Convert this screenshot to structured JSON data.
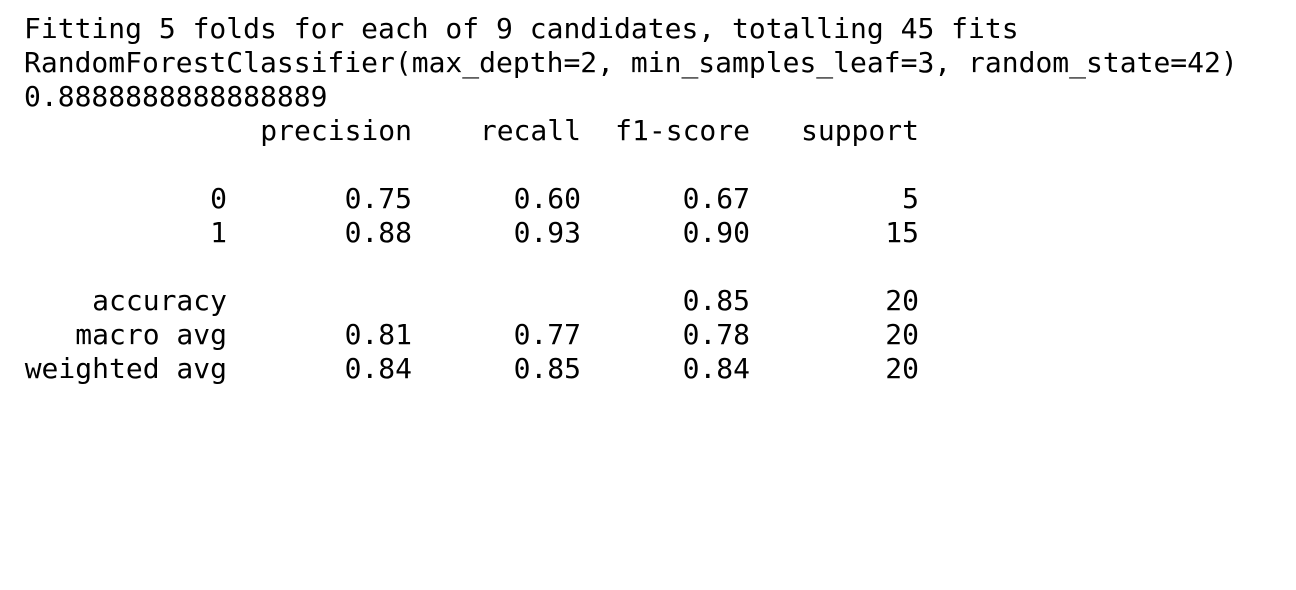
{
  "output": {
    "lines": [
      "Fitting 5 folds for each of 9 candidates, totalling 45 fits",
      "RandomForestClassifier(max_depth=2, min_samples_leaf=3, random_state=42)",
      "0.8888888888888889"
    ]
  },
  "report": {
    "headers": [
      "precision",
      "recall",
      "f1-score",
      "support"
    ],
    "class_rows": [
      {
        "label": "0",
        "precision": "0.75",
        "recall": "0.60",
        "f1": "0.67",
        "support": "5"
      },
      {
        "label": "1",
        "precision": "0.88",
        "recall": "0.93",
        "f1": "0.90",
        "support": "15"
      }
    ],
    "summary_rows": [
      {
        "label": "accuracy",
        "precision": "",
        "recall": "",
        "f1": "0.85",
        "support": "20"
      },
      {
        "label": "macro avg",
        "precision": "0.81",
        "recall": "0.77",
        "f1": "0.78",
        "support": "20"
      },
      {
        "label": "weighted avg",
        "precision": "0.84",
        "recall": "0.85",
        "f1": "0.84",
        "support": "20"
      }
    ]
  }
}
